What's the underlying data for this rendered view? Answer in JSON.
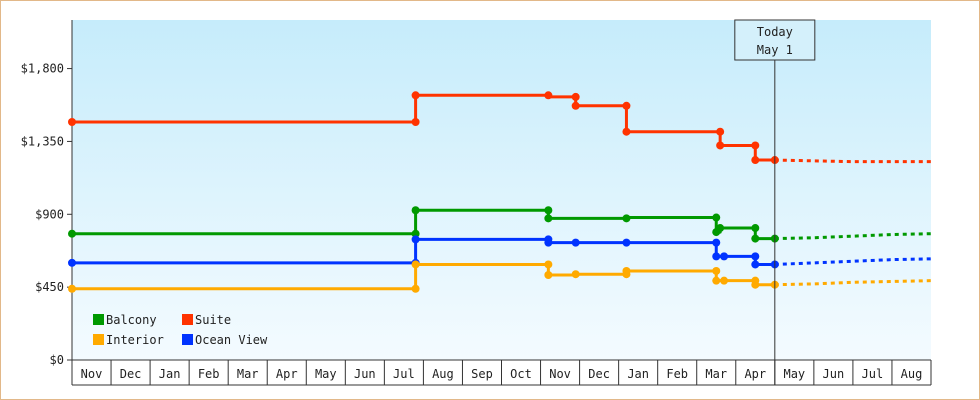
{
  "chart_data": {
    "type": "line",
    "y_ticks": [
      "$0",
      "$450",
      "$900",
      "$1,350",
      "$1,800"
    ],
    "ylim": [
      0,
      2100
    ],
    "months": [
      "Nov",
      "Dec",
      "Jan",
      "Feb",
      "Mar",
      "Apr",
      "May",
      "Jun",
      "Jul",
      "Aug",
      "Sep",
      "Oct",
      "Nov",
      "Dec",
      "Jan",
      "Feb",
      "Mar",
      "Apr",
      "May",
      "Jun",
      "Jul",
      "Aug"
    ],
    "today": {
      "line1": "Today",
      "line2": "May 1",
      "month_index": 18.0
    },
    "legend": [
      {
        "key": "balcony",
        "label": "Balcony"
      },
      {
        "key": "suite",
        "label": "Suite"
      },
      {
        "key": "interior",
        "label": "Interior"
      },
      {
        "key": "ocean",
        "label": "Ocean View"
      }
    ],
    "series": [
      {
        "key": "suite",
        "name": "Suite",
        "color": "#ff3300",
        "points": [
          [
            0.0,
            1470
          ],
          [
            8.8,
            1470
          ],
          [
            8.8,
            1635
          ],
          [
            12.2,
            1635
          ],
          [
            12.2,
            1625
          ],
          [
            12.9,
            1625
          ],
          [
            12.9,
            1570
          ],
          [
            14.2,
            1570
          ],
          [
            14.2,
            1410
          ],
          [
            16.6,
            1410
          ],
          [
            16.6,
            1325
          ],
          [
            17.5,
            1325
          ],
          [
            17.5,
            1235
          ],
          [
            18.0,
            1235
          ]
        ],
        "markers": [
          [
            0.0,
            1470
          ],
          [
            8.8,
            1470
          ],
          [
            8.8,
            1635
          ],
          [
            12.2,
            1635
          ],
          [
            12.9,
            1625
          ],
          [
            12.9,
            1570
          ],
          [
            14.2,
            1570
          ],
          [
            14.2,
            1410
          ],
          [
            16.6,
            1410
          ],
          [
            16.6,
            1325
          ],
          [
            17.5,
            1325
          ],
          [
            17.5,
            1235
          ],
          [
            18.0,
            1235
          ]
        ],
        "forecast": [
          [
            18.0,
            1235
          ],
          [
            19.0,
            1230
          ],
          [
            20.0,
            1225
          ],
          [
            21.0,
            1225
          ],
          [
            22.0,
            1225
          ]
        ]
      },
      {
        "key": "balcony",
        "name": "Balcony",
        "color": "#009900",
        "points": [
          [
            0.0,
            780
          ],
          [
            8.8,
            780
          ],
          [
            8.8,
            925
          ],
          [
            12.2,
            925
          ],
          [
            12.2,
            875
          ],
          [
            14.2,
            875
          ],
          [
            14.2,
            880
          ],
          [
            16.5,
            880
          ],
          [
            16.5,
            790
          ],
          [
            16.6,
            790
          ],
          [
            16.6,
            815
          ],
          [
            17.5,
            815
          ],
          [
            17.5,
            750
          ],
          [
            18.0,
            750
          ]
        ],
        "markers": [
          [
            0.0,
            780
          ],
          [
            8.8,
            780
          ],
          [
            8.8,
            925
          ],
          [
            12.2,
            925
          ],
          [
            12.2,
            875
          ],
          [
            14.2,
            875
          ],
          [
            16.5,
            880
          ],
          [
            16.5,
            790
          ],
          [
            16.6,
            815
          ],
          [
            17.5,
            815
          ],
          [
            17.5,
            750
          ],
          [
            18.0,
            750
          ]
        ],
        "forecast": [
          [
            18.0,
            750
          ],
          [
            19.0,
            755
          ],
          [
            20.0,
            765
          ],
          [
            21.0,
            775
          ],
          [
            22.0,
            780
          ]
        ]
      },
      {
        "key": "ocean",
        "name": "Ocean View",
        "color": "#0033ff",
        "points": [
          [
            0.0,
            600
          ],
          [
            8.8,
            600
          ],
          [
            8.8,
            745
          ],
          [
            12.2,
            745
          ],
          [
            12.2,
            725
          ],
          [
            14.2,
            725
          ],
          [
            14.2,
            725
          ],
          [
            16.5,
            725
          ],
          [
            16.5,
            640
          ],
          [
            17.5,
            640
          ],
          [
            17.5,
            590
          ],
          [
            18.0,
            590
          ]
        ],
        "markers": [
          [
            0.0,
            600
          ],
          [
            8.8,
            600
          ],
          [
            8.8,
            745
          ],
          [
            12.2,
            745
          ],
          [
            12.2,
            725
          ],
          [
            12.9,
            725
          ],
          [
            14.2,
            725
          ],
          [
            16.5,
            725
          ],
          [
            16.5,
            640
          ],
          [
            16.7,
            640
          ],
          [
            17.5,
            640
          ],
          [
            17.5,
            590
          ],
          [
            18.0,
            590
          ]
        ],
        "forecast": [
          [
            18.0,
            590
          ],
          [
            19.0,
            600
          ],
          [
            20.0,
            610
          ],
          [
            21.0,
            620
          ],
          [
            22.0,
            625
          ]
        ]
      },
      {
        "key": "interior",
        "name": "Interior",
        "color": "#ffaa00",
        "points": [
          [
            0.0,
            440
          ],
          [
            8.8,
            440
          ],
          [
            8.8,
            590
          ],
          [
            12.2,
            590
          ],
          [
            12.2,
            525
          ],
          [
            12.9,
            525
          ],
          [
            12.9,
            530
          ],
          [
            14.2,
            530
          ],
          [
            14.2,
            550
          ],
          [
            16.5,
            550
          ],
          [
            16.5,
            490
          ],
          [
            17.5,
            490
          ],
          [
            17.5,
            465
          ],
          [
            18.0,
            465
          ]
        ],
        "markers": [
          [
            0.0,
            440
          ],
          [
            8.8,
            440
          ],
          [
            8.8,
            590
          ],
          [
            12.2,
            590
          ],
          [
            12.2,
            525
          ],
          [
            12.9,
            530
          ],
          [
            14.2,
            530
          ],
          [
            14.2,
            550
          ],
          [
            16.5,
            550
          ],
          [
            16.5,
            490
          ],
          [
            16.7,
            490
          ],
          [
            17.5,
            490
          ],
          [
            17.5,
            465
          ],
          [
            18.0,
            465
          ]
        ],
        "forecast": [
          [
            18.0,
            465
          ],
          [
            19.0,
            470
          ],
          [
            20.0,
            480
          ],
          [
            21.0,
            485
          ],
          [
            22.0,
            490
          ]
        ]
      }
    ]
  }
}
